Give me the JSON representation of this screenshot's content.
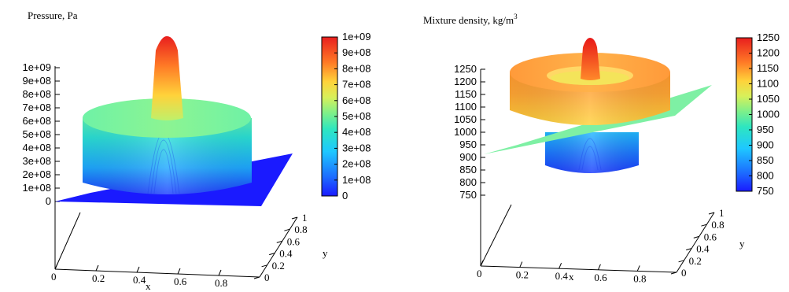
{
  "chart_data": [
    {
      "type": "surface",
      "title": "Pressure, Pa",
      "xlabel": "x",
      "ylabel": "y",
      "zlim": [
        0,
        1000000000
      ],
      "z_ticks": [
        "1e+09",
        "9e+08",
        "8e+08",
        "7e+08",
        "6e+08",
        "5e+08",
        "4e+08",
        "3e+08",
        "2e+08",
        "1e+08",
        "0"
      ],
      "x_ticks": [
        "0",
        "0.2",
        "0.4",
        "0.6",
        "0.8"
      ],
      "y_ticks": [
        "0",
        "0.2",
        "0.4",
        "0.6",
        "0.8",
        "1"
      ],
      "colorbar": {
        "min": 0,
        "max": 1000000000,
        "labels": [
          "1e+09",
          "9e+08",
          "8e+08",
          "7e+08",
          "6e+08",
          "5e+08",
          "4e+08",
          "3e+08",
          "2e+08",
          "1e+08",
          "0"
        ]
      },
      "surface": {
        "base_level": 0,
        "plateau_level": 500000000,
        "peak_level": 1000000000,
        "plateau_radius": 0.35,
        "peak_radius": 0.08
      },
      "grid": false,
      "legend": "colorbar-right"
    },
    {
      "type": "surface",
      "title": "Mixture density, kg/m",
      "title_superscript": "3",
      "xlabel": "x",
      "ylabel": "y",
      "zlim": [
        750,
        1250
      ],
      "z_ticks": [
        "1250",
        "1200",
        "1150",
        "1100",
        "1050",
        "1000",
        "950",
        "900",
        "850",
        "800",
        "750"
      ],
      "x_ticks": [
        "0",
        "0.2",
        "0.4",
        "0.6",
        "0.8"
      ],
      "y_ticks": [
        "0",
        "0.2",
        "0.4",
        "0.6",
        "0.8",
        "1"
      ],
      "colorbar": {
        "min": 750,
        "max": 1250,
        "labels": [
          "1250",
          "1200",
          "1150",
          "1100",
          "1050",
          "1000",
          "950",
          "900",
          "850",
          "800",
          "750"
        ]
      },
      "surface": {
        "base_level": 1000,
        "ring_level": 1200,
        "ring_inner_radius": 0.2,
        "ring_outer_radius": 0.33,
        "well_level": 850,
        "well_radius": 0.2,
        "peak_level": 1250,
        "peak_radius": 0.06
      },
      "grid": false,
      "legend": "colorbar-right"
    }
  ]
}
